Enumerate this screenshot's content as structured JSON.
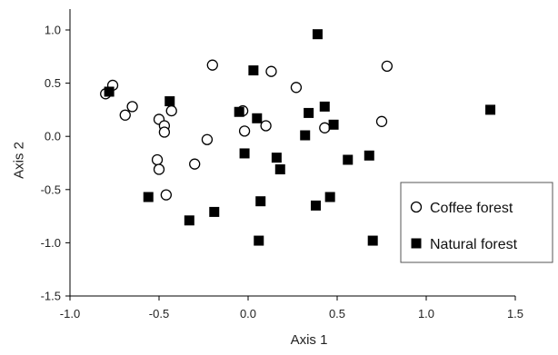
{
  "chart_data": {
    "type": "scatter",
    "title": "",
    "xlabel": "Axis 1",
    "ylabel": "Axis 2",
    "xlim": [
      -1.0,
      1.5
    ],
    "ylim": [
      -1.5,
      1.0
    ],
    "x_ticks": [
      -1.0,
      -0.5,
      0.0,
      0.5,
      1.0,
      1.5
    ],
    "x_tick_labels": [
      "-1.0",
      "-0.5",
      "0.0",
      "0.5",
      "1.0",
      "1.5"
    ],
    "y_ticks": [
      1.0,
      0.5,
      0.0,
      -0.5,
      -1.0,
      -1.5
    ],
    "y_tick_labels": [
      "1.0",
      "0.5",
      "0.0",
      "-0.5",
      "-1.0",
      "-1.5"
    ],
    "grid": false,
    "legend_position": "bottom-right",
    "series": [
      {
        "name": "Coffee forest",
        "marker": "open-circle",
        "color": "#000000",
        "points": [
          [
            -0.76,
            0.48
          ],
          [
            -0.8,
            0.4
          ],
          [
            -0.65,
            0.28
          ],
          [
            -0.69,
            0.2
          ],
          [
            -0.43,
            0.24
          ],
          [
            -0.5,
            0.16
          ],
          [
            -0.47,
            0.1
          ],
          [
            -0.47,
            0.04
          ],
          [
            -0.51,
            -0.22
          ],
          [
            -0.5,
            -0.31
          ],
          [
            -0.46,
            -0.55
          ],
          [
            -0.3,
            -0.26
          ],
          [
            -0.23,
            -0.03
          ],
          [
            -0.2,
            0.67
          ],
          [
            0.13,
            0.61
          ],
          [
            -0.03,
            0.24
          ],
          [
            -0.02,
            0.05
          ],
          [
            0.1,
            0.1
          ],
          [
            0.27,
            0.46
          ],
          [
            0.43,
            0.08
          ],
          [
            0.78,
            0.66
          ],
          [
            0.75,
            0.14
          ]
        ]
      },
      {
        "name": "Natural forest",
        "marker": "filled-square",
        "color": "#000000",
        "points": [
          [
            -0.78,
            0.42
          ],
          [
            -0.44,
            0.33
          ],
          [
            -0.56,
            -0.57
          ],
          [
            -0.33,
            -0.79
          ],
          [
            -0.19,
            -0.71
          ],
          [
            -0.05,
            0.23
          ],
          [
            -0.02,
            -0.16
          ],
          [
            0.03,
            0.62
          ],
          [
            0.05,
            0.17
          ],
          [
            0.07,
            -0.61
          ],
          [
            0.06,
            -0.98
          ],
          [
            0.16,
            -0.2
          ],
          [
            0.18,
            -0.31
          ],
          [
            0.32,
            0.01
          ],
          [
            0.34,
            0.22
          ],
          [
            0.38,
            -0.65
          ],
          [
            0.39,
            0.96
          ],
          [
            0.43,
            0.28
          ],
          [
            0.46,
            -0.57
          ],
          [
            0.48,
            0.11
          ],
          [
            0.56,
            -0.22
          ],
          [
            0.68,
            -0.18
          ],
          [
            0.7,
            -0.98
          ],
          [
            1.36,
            0.25
          ]
        ]
      }
    ]
  }
}
